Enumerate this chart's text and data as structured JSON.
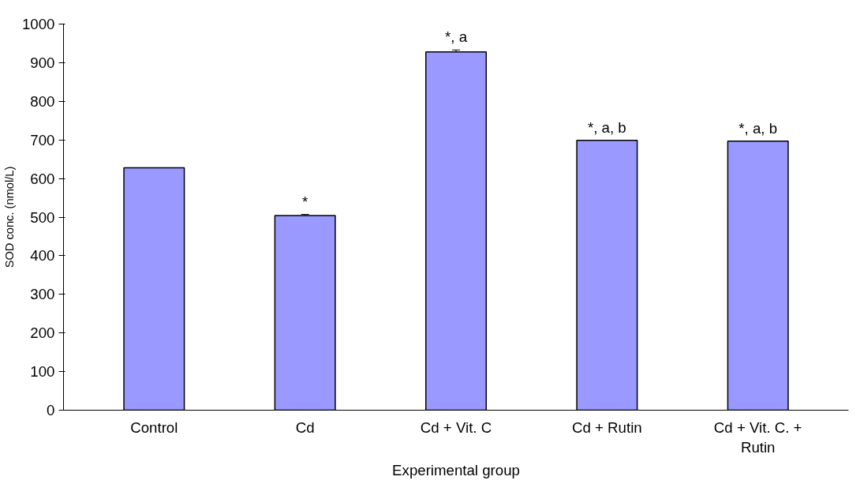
{
  "chart_data": {
    "type": "bar",
    "xlabel": "Experimental group",
    "ylabel": "SOD conc. (nmol/L)",
    "categories": [
      "Control",
      "Cd",
      "Cd + Vit. C",
      "Cd + Rutin",
      "Cd + Vit. C. + Rutin"
    ],
    "values": [
      628,
      504,
      928,
      699,
      697
    ],
    "errors": [
      null,
      3,
      5,
      null,
      null
    ],
    "color": "#9999ff",
    "ylim": [
      0,
      1000
    ],
    "yticks": [
      0,
      100,
      200,
      300,
      400,
      500,
      600,
      700,
      800,
      900,
      1000
    ],
    "grid": false,
    "annotations": [
      {
        "text": "*",
        "x": "Cd",
        "y": 504
      },
      {
        "text": "*, a",
        "x": "Cd + Vit. C",
        "y": 928
      },
      {
        "text": "*, a, b",
        "x": "Cd + Rutin",
        "y": 699
      },
      {
        "text": "*, a, b",
        "x": "Cd + Vit. C. + Rutin",
        "y": 697
      }
    ]
  }
}
